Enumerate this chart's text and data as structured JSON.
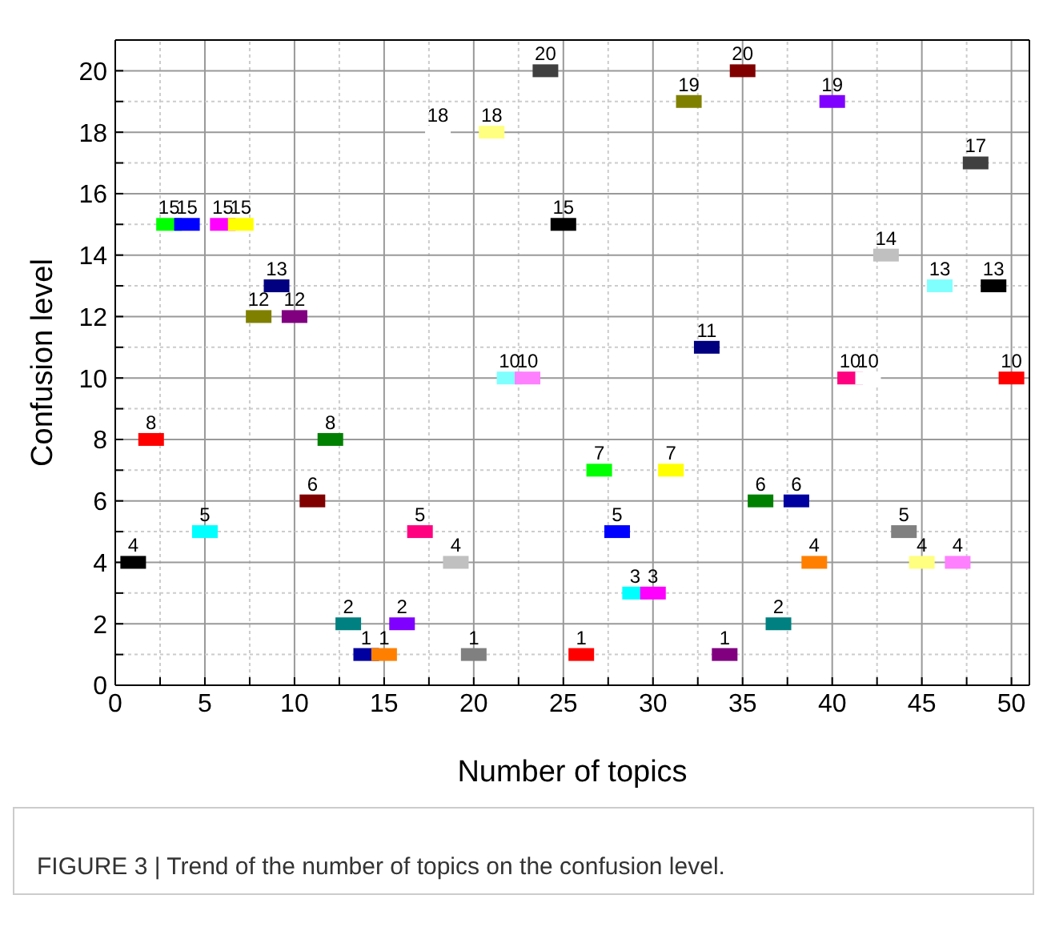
{
  "chart_data": {
    "type": "scatter",
    "xlabel": "Number of topics",
    "ylabel": "Confusion level",
    "x": [
      1,
      2,
      3,
      4,
      5,
      6,
      7,
      8,
      9,
      10,
      11,
      12,
      13,
      14,
      15,
      16,
      17,
      18,
      19,
      20,
      21,
      22,
      23,
      24,
      25,
      26,
      27,
      28,
      29,
      30,
      31,
      32,
      33,
      34,
      35,
      36,
      37,
      38,
      39,
      40,
      41,
      42,
      43,
      44,
      45,
      46,
      47,
      48,
      49,
      50
    ],
    "values": [
      4,
      8,
      15,
      15,
      5,
      15,
      15,
      12,
      13,
      12,
      6,
      8,
      2,
      1,
      1,
      2,
      5,
      18,
      4,
      1,
      18,
      10,
      10,
      20,
      15,
      1,
      7,
      5,
      3,
      3,
      7,
      19,
      11,
      1,
      20,
      6,
      2,
      6,
      4,
      19,
      10,
      10,
      14,
      5,
      4,
      13,
      4,
      17,
      13,
      10
    ],
    "colors": [
      "#000000",
      "#ff0000",
      "#00ff00",
      "#0000ff",
      "#00ffff",
      "#ff00ff",
      "#ffff00",
      "#808000",
      "#000080",
      "#800080",
      "#800000",
      "#008000",
      "#008080",
      "#0000a0",
      "#ff8000",
      "#8000ff",
      "#ff0080",
      "#ffffff",
      "#c0c0c0",
      "#808080",
      "#ffff80",
      "#80ffff",
      "#ff80ff",
      "#404040",
      "#000000",
      "#ff0000",
      "#00ff00",
      "#0000ff",
      "#00ffff",
      "#ff00ff",
      "#ffff00",
      "#808000",
      "#000080",
      "#800080",
      "#800000",
      "#008000",
      "#008080",
      "#0000a0",
      "#ff8000",
      "#8000ff",
      "#ff0080",
      "#ffffff",
      "#c0c0c0",
      "#808080",
      "#ffff80",
      "#80ffff",
      "#ff80ff",
      "#404040",
      "#000000",
      "#ff0000"
    ],
    "marker": "square",
    "data_labels": true,
    "xlim": [
      0,
      51
    ],
    "xticks": [
      0,
      {
        "value": 2.5,
        "label": null
      },
      5,
      {
        "value": 7.5,
        "label": null
      },
      10,
      {
        "value": 12.5,
        "label": null
      },
      15,
      {
        "value": 17.5,
        "label": null
      },
      20,
      {
        "value": 22.5,
        "label": null
      },
      25,
      {
        "value": 27.5,
        "label": null
      },
      30,
      {
        "value": 32.5,
        "label": null
      },
      35,
      {
        "value": 37.5,
        "label": null
      },
      40,
      {
        "value": 42.5,
        "label": null
      },
      45,
      {
        "value": 47.5,
        "label": null
      },
      50
    ],
    "ylim": [
      0,
      21
    ],
    "yticks": [
      0,
      {
        "value": 1,
        "label": null
      },
      2,
      {
        "value": 3,
        "label": null
      },
      4,
      {
        "value": 5,
        "label": null
      },
      6,
      {
        "value": 7,
        "label": null
      },
      8,
      {
        "value": 9,
        "label": null
      },
      10,
      {
        "value": 11,
        "label": null
      },
      12,
      {
        "value": 13,
        "label": null
      },
      14,
      {
        "value": 15,
        "label": null
      },
      16,
      {
        "value": 17,
        "label": null
      },
      18,
      {
        "value": 19,
        "label": null
      },
      20
    ],
    "grid": true,
    "annotations": [
      "FIGURE 3 | Trend of the number of topics on the confusion level."
    ]
  }
}
